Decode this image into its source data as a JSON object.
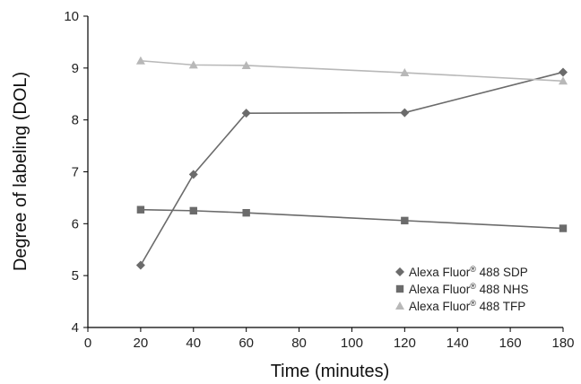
{
  "chart_data": {
    "type": "line",
    "xlabel": "Time (minutes)",
    "ylabel": "Degree of labeling (DOL)",
    "xlim": [
      0,
      180
    ],
    "ylim": [
      4,
      10
    ],
    "xticks": [
      0,
      20,
      40,
      60,
      80,
      100,
      120,
      140,
      160,
      180
    ],
    "yticks": [
      4,
      5,
      6,
      7,
      8,
      9,
      10
    ],
    "grid": false,
    "legend_position": "bottom-right",
    "series": [
      {
        "name_main": "Alexa Fluor",
        "name_sup": "®",
        "name_rest": " 488 SDP",
        "marker": "diamond",
        "color": "#6b6b6b",
        "x": [
          20,
          40,
          60,
          120,
          180
        ],
        "y": [
          5.2,
          6.95,
          8.13,
          8.14,
          8.92
        ]
      },
      {
        "name_main": "Alexa Fluor",
        "name_sup": "®",
        "name_rest": " 488 NHS",
        "marker": "square",
        "color": "#6b6b6b",
        "x": [
          20,
          40,
          60,
          120,
          180
        ],
        "y": [
          6.27,
          6.25,
          6.21,
          6.06,
          5.91
        ]
      },
      {
        "name_main": "Alexa Fluor",
        "name_sup": "®",
        "name_rest": " 488 TFP",
        "marker": "triangle",
        "color": "#b8b8b8",
        "x": [
          20,
          40,
          60,
          120,
          180
        ],
        "y": [
          9.14,
          9.06,
          9.05,
          8.91,
          8.75
        ]
      }
    ]
  }
}
